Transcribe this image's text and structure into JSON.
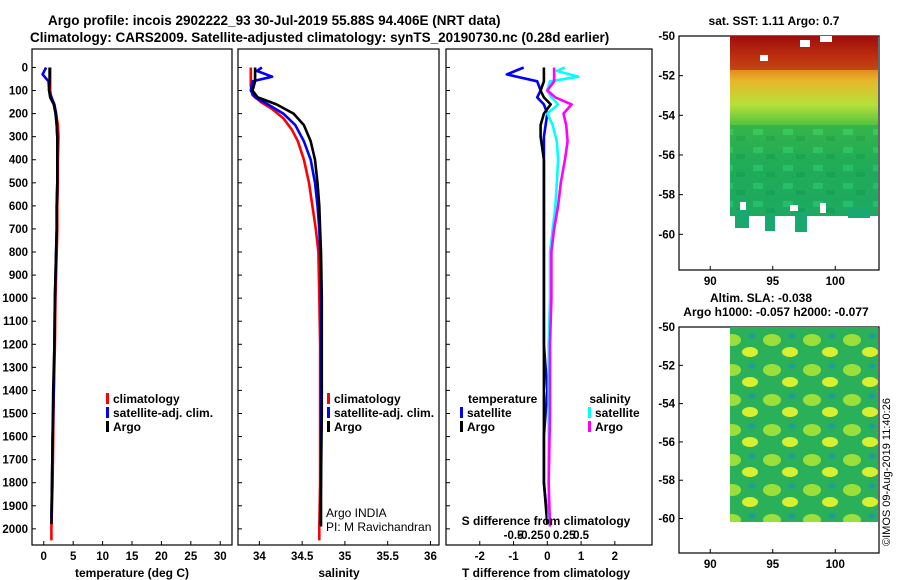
{
  "title": {
    "line1": "Argo profile: incois 2902222_93 30-Jul-2019 55.88S 94.406E (NRT data)",
    "line2": "Climatology: CARS2009. Satellite-adjusted climatology: synTS_20190730.nc (0.28d earlier)"
  },
  "depth_axis": {
    "ticks": [
      0,
      100,
      200,
      300,
      400,
      500,
      600,
      700,
      800,
      900,
      1000,
      1100,
      1200,
      1300,
      1400,
      1500,
      1600,
      1700,
      1800,
      1900,
      2000
    ],
    "range": [
      -80,
      2070
    ]
  },
  "colors": {
    "climatology": "#ff0000",
    "satellite": "#0000ff",
    "argo": "#000000",
    "sat_salinity": "#00ffff",
    "clim_salinity": "#ff00ff"
  },
  "chart_data": [
    {
      "type": "line",
      "id": "temperature",
      "xlabel": "temperature (deg C)",
      "xlim": [
        -2,
        32
      ],
      "xticks": [
        0,
        5,
        10,
        15,
        20,
        25,
        30
      ],
      "legend": [
        "climatology",
        "satellite-adj. clim.",
        "Argo"
      ],
      "series": [
        {
          "name": "climatology",
          "color": "#ff0000",
          "points": [
            [
              1.1,
              0
            ],
            [
              1.1,
              50
            ],
            [
              1.1,
              100
            ],
            [
              1.2,
              120
            ],
            [
              1.6,
              150
            ],
            [
              2.1,
              200
            ],
            [
              2.4,
              250
            ],
            [
              2.5,
              300
            ],
            [
              2.4,
              400
            ],
            [
              2.4,
              500
            ],
            [
              2.3,
              600
            ],
            [
              2.3,
              700
            ],
            [
              2.2,
              800
            ],
            [
              2.1,
              900
            ],
            [
              2.0,
              1000
            ],
            [
              1.9,
              1200
            ],
            [
              1.7,
              1400
            ],
            [
              1.6,
              1600
            ],
            [
              1.5,
              1800
            ],
            [
              1.4,
              1900
            ],
            [
              1.3,
              2000
            ],
            [
              1.3,
              2050
            ]
          ]
        },
        {
          "name": "satellite-adj. clim.",
          "color": "#0000ff",
          "points": [
            [
              0.4,
              0
            ],
            [
              -0.2,
              30
            ],
            [
              0.8,
              60
            ],
            [
              0.9,
              100
            ],
            [
              1.3,
              130
            ],
            [
              1.8,
              160
            ],
            [
              2.1,
              200
            ],
            [
              2.3,
              300
            ],
            [
              2.3,
              400
            ],
            [
              2.3,
              500
            ],
            [
              2.2,
              600
            ],
            [
              2.2,
              700
            ],
            [
              2.1,
              800
            ],
            [
              2.0,
              900
            ],
            [
              1.9,
              1000
            ],
            [
              1.8,
              1200
            ],
            [
              1.7,
              1400
            ],
            [
              1.5,
              1600
            ],
            [
              1.4,
              1800
            ],
            [
              1.3,
              1950
            ]
          ]
        },
        {
          "name": "Argo",
          "color": "#000000",
          "points": [
            [
              1.0,
              0
            ],
            [
              1.0,
              60
            ],
            [
              0.9,
              100
            ],
            [
              1.1,
              130
            ],
            [
              1.7,
              160
            ],
            [
              2.0,
              200
            ],
            [
              2.2,
              250
            ],
            [
              2.3,
              300
            ],
            [
              2.3,
              400
            ],
            [
              2.3,
              500
            ],
            [
              2.2,
              600
            ],
            [
              2.2,
              700
            ],
            [
              2.1,
              800
            ],
            [
              2.0,
              900
            ],
            [
              1.9,
              1000
            ],
            [
              1.8,
              1200
            ],
            [
              1.6,
              1400
            ],
            [
              1.5,
              1600
            ],
            [
              1.4,
              1800
            ],
            [
              1.3,
              1980
            ]
          ]
        }
      ]
    },
    {
      "type": "line",
      "id": "salinity",
      "xlabel": "salinity",
      "xlim": [
        33.75,
        36.1
      ],
      "xticks": [
        34,
        34.5,
        35,
        35.5,
        36
      ],
      "xticklabels": [
        "34",
        "34.5",
        "35",
        "35.5",
        "36"
      ],
      "legend": [
        "climatology",
        "satellite-adj. clim.",
        "Argo"
      ],
      "annotation": [
        "Argo INDIA",
        "PI: M Ravichandran"
      ],
      "series": [
        {
          "name": "climatology",
          "color": "#ff0000",
          "points": [
            [
              33.9,
              0
            ],
            [
              33.9,
              80
            ],
            [
              33.92,
              120
            ],
            [
              34.02,
              150
            ],
            [
              34.15,
              180
            ],
            [
              34.28,
              220
            ],
            [
              34.38,
              270
            ],
            [
              34.45,
              320
            ],
            [
              34.52,
              400
            ],
            [
              34.58,
              500
            ],
            [
              34.62,
              600
            ],
            [
              34.66,
              700
            ],
            [
              34.69,
              800
            ],
            [
              34.7,
              1000
            ],
            [
              34.71,
              1200
            ],
            [
              34.71,
              1500
            ],
            [
              34.71,
              1800
            ],
            [
              34.7,
              2000
            ],
            [
              34.7,
              2050
            ]
          ]
        },
        {
          "name": "satellite-adj. clim.",
          "color": "#0000ff",
          "points": [
            [
              34.03,
              0
            ],
            [
              33.97,
              15
            ],
            [
              34.15,
              40
            ],
            [
              33.92,
              60
            ],
            [
              33.9,
              100
            ],
            [
              33.95,
              130
            ],
            [
              34.1,
              160
            ],
            [
              34.28,
              200
            ],
            [
              34.42,
              250
            ],
            [
              34.52,
              320
            ],
            [
              34.6,
              400
            ],
            [
              34.65,
              500
            ],
            [
              34.68,
              600
            ],
            [
              34.7,
              700
            ],
            [
              34.71,
              800
            ],
            [
              34.72,
              1000
            ],
            [
              34.72,
              1200
            ],
            [
              34.72,
              1500
            ],
            [
              34.72,
              1800
            ],
            [
              34.71,
              1980
            ]
          ]
        },
        {
          "name": "Argo",
          "color": "#000000",
          "points": [
            [
              33.95,
              0
            ],
            [
              33.95,
              60
            ],
            [
              33.92,
              100
            ],
            [
              33.98,
              130
            ],
            [
              34.2,
              160
            ],
            [
              34.4,
              200
            ],
            [
              34.52,
              250
            ],
            [
              34.6,
              320
            ],
            [
              34.65,
              400
            ],
            [
              34.68,
              500
            ],
            [
              34.7,
              600
            ],
            [
              34.71,
              700
            ],
            [
              34.72,
              800
            ],
            [
              34.73,
              1000
            ],
            [
              34.73,
              1200
            ],
            [
              34.73,
              1500
            ],
            [
              34.72,
              1800
            ],
            [
              34.72,
              1990
            ]
          ]
        }
      ]
    },
    {
      "type": "line",
      "id": "difference",
      "xlabel": "T difference from climatology",
      "xlabel_top": "S difference from climatology",
      "xlim": [
        -3,
        3.1
      ],
      "xticks": [
        -2,
        -1,
        0,
        1,
        2
      ],
      "xticks_s": [
        -0.5,
        -0.25,
        0,
        0.25,
        0.5
      ],
      "xticklabels_s": [
        "-0.5",
        "-0.25",
        "0",
        "0.25",
        "0.5"
      ],
      "legend_left_title": "temperature",
      "legend_right_title": "salinity",
      "legend": [
        "satellite",
        "Argo",
        "satellite",
        "Argo"
      ],
      "series": [
        {
          "name": "T satellite",
          "color": "#0000ff",
          "points": [
            [
              -0.7,
              0
            ],
            [
              -1.2,
              30
            ],
            [
              -0.3,
              60
            ],
            [
              -0.2,
              100
            ],
            [
              -0.3,
              130
            ],
            [
              -0.1,
              160
            ],
            [
              0,
              200
            ],
            [
              -0.1,
              300
            ],
            [
              -0.1,
              400
            ],
            [
              -0.1,
              500
            ],
            [
              -0.1,
              600
            ],
            [
              -0.1,
              700
            ],
            [
              -0.1,
              800
            ],
            [
              -0.1,
              900
            ],
            [
              -0.1,
              1000
            ],
            [
              -0.1,
              1200
            ],
            [
              0,
              1400
            ],
            [
              -0.1,
              1600
            ],
            [
              -0.1,
              1800
            ],
            [
              0,
              1950
            ]
          ]
        },
        {
          "name": "T Argo",
          "color": "#000000",
          "points": [
            [
              -0.1,
              0
            ],
            [
              -0.1,
              60
            ],
            [
              -0.2,
              100
            ],
            [
              -0.1,
              130
            ],
            [
              0.1,
              160
            ],
            [
              -0.1,
              200
            ],
            [
              -0.2,
              250
            ],
            [
              -0.2,
              300
            ],
            [
              -0.1,
              400
            ],
            [
              -0.1,
              500
            ],
            [
              -0.1,
              600
            ],
            [
              -0.1,
              700
            ],
            [
              -0.1,
              800
            ],
            [
              -0.1,
              900
            ],
            [
              -0.1,
              1000
            ],
            [
              -0.1,
              1200
            ],
            [
              -0.1,
              1400
            ],
            [
              -0.1,
              1600
            ],
            [
              -0.1,
              1800
            ],
            [
              0,
              1980
            ]
          ]
        },
        {
          "name": "S satellite",
          "color": "#00ffff",
          "points": [
            [
              0.13,
              0
            ],
            [
              0.07,
              15
            ],
            [
              0.23,
              40
            ],
            [
              0.02,
              60
            ],
            [
              0,
              100
            ],
            [
              0.03,
              130
            ],
            [
              0.08,
              160
            ],
            [
              0,
              200
            ],
            [
              0.04,
              250
            ],
            [
              0.07,
              320
            ],
            [
              0.08,
              400
            ],
            [
              0.07,
              500
            ],
            [
              0.06,
              600
            ],
            [
              0.04,
              700
            ],
            [
              0.02,
              800
            ],
            [
              0.02,
              1000
            ],
            [
              0.01,
              1200
            ],
            [
              0.01,
              1500
            ],
            [
              0.01,
              1800
            ],
            [
              0.01,
              1980
            ]
          ]
        },
        {
          "name": "S Argo",
          "color": "#ff00ff",
          "points": [
            [
              0.05,
              0
            ],
            [
              0.05,
              60
            ],
            [
              0,
              100
            ],
            [
              0.06,
              130
            ],
            [
              0.18,
              160
            ],
            [
              0.12,
              200
            ],
            [
              0.14,
              250
            ],
            [
              0.15,
              320
            ],
            [
              0.13,
              400
            ],
            [
              0.1,
              500
            ],
            [
              0.08,
              600
            ],
            [
              0.05,
              700
            ],
            [
              0.03,
              800
            ],
            [
              0.03,
              1000
            ],
            [
              0.02,
              1200
            ],
            [
              0.02,
              1500
            ],
            [
              0.01,
              1800
            ],
            [
              0.02,
              1990
            ]
          ]
        }
      ]
    },
    {
      "type": "heatmap",
      "id": "sst_map",
      "title": "sat. SST: 1.11 Argo: 0.7",
      "xticks": [
        90,
        95,
        100
      ],
      "yticks": [
        -50,
        -52,
        -54,
        -56,
        -58,
        -60
      ],
      "xlim": [
        87.5,
        103.5
      ],
      "ylim": [
        -61.8,
        -50
      ]
    },
    {
      "type": "heatmap",
      "id": "sla_map",
      "title_line1": "Altim. SLA: -0.038",
      "title_line2": "Argo h1000: -0.057 h2000: -0.077",
      "xticks": [
        90,
        95,
        100
      ],
      "yticks": [
        -50,
        -52,
        -54,
        -56,
        -58,
        -60
      ],
      "xlim": [
        87.5,
        103.5
      ],
      "ylim": [
        -61.8,
        -50
      ]
    }
  ],
  "stamp": "©IMOS 09-Aug-2019 11:40:26"
}
